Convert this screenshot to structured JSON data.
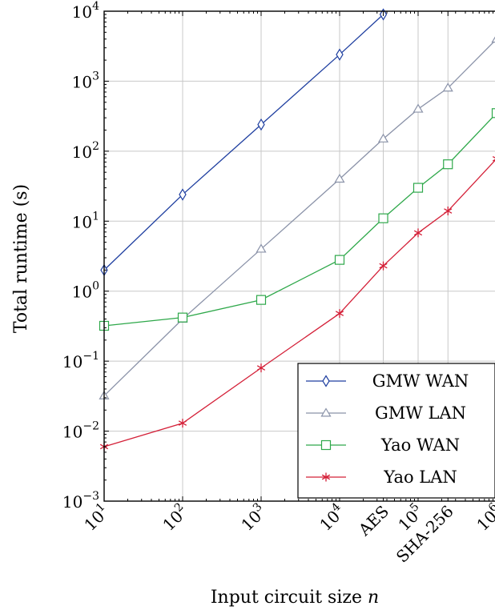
{
  "chart_data": {
    "type": "line",
    "xscale": "log",
    "yscale": "log",
    "xlim": [
      10,
      1000000
    ],
    "ylim": [
      0.001,
      10000
    ],
    "grid": true,
    "legend_position": "bottom-right",
    "ylabel": "Total runtime (s)",
    "xlabel": "Input circuit size n",
    "xlabel_text": "Input circuit size ",
    "xlabel_var": "n",
    "x_ticks": [
      {
        "value": 10,
        "base": "10",
        "exp": "1"
      },
      {
        "value": 100,
        "base": "10",
        "exp": "2"
      },
      {
        "value": 1000,
        "base": "10",
        "exp": "3"
      },
      {
        "value": 10000,
        "base": "10",
        "exp": "4"
      },
      {
        "value": 36000,
        "base": "AES",
        "exp": ""
      },
      {
        "value": 100000,
        "base": "10",
        "exp": "5"
      },
      {
        "value": 240000,
        "base": "SHA-256",
        "exp": ""
      },
      {
        "value": 1000000,
        "base": "10",
        "exp": "6"
      }
    ],
    "y_ticks": [
      {
        "value": 0.001,
        "base": "10",
        "exp": "−3"
      },
      {
        "value": 0.01,
        "base": "10",
        "exp": "−2"
      },
      {
        "value": 0.1,
        "base": "10",
        "exp": "−1"
      },
      {
        "value": 1,
        "base": "10",
        "exp": "0"
      },
      {
        "value": 10,
        "base": "10",
        "exp": "1"
      },
      {
        "value": 100,
        "base": "10",
        "exp": "2"
      },
      {
        "value": 1000,
        "base": "10",
        "exp": "3"
      },
      {
        "value": 10000,
        "base": "10",
        "exp": "4"
      }
    ],
    "series": [
      {
        "name": "GMW WAN",
        "color": "#1f3fa0",
        "marker": "diamond",
        "x": [
          10,
          100,
          1000,
          10000,
          36000
        ],
        "y": [
          2,
          24,
          240,
          2400,
          9000
        ]
      },
      {
        "name": "GMW LAN",
        "color": "#8a92a8",
        "marker": "triangle",
        "x": [
          10,
          100,
          1000,
          10000,
          36000,
          100000,
          240000,
          1000000
        ],
        "y": [
          0.032,
          0.4,
          4,
          40,
          150,
          400,
          800,
          4000
        ]
      },
      {
        "name": "Yao WAN",
        "color": "#2ea84a",
        "marker": "square",
        "x": [
          10,
          100,
          1000,
          10000,
          36000,
          100000,
          240000,
          1000000
        ],
        "y": [
          0.32,
          0.42,
          0.75,
          2.8,
          11,
          30,
          65,
          350
        ]
      },
      {
        "name": "Yao LAN",
        "color": "#d42038",
        "marker": "star",
        "x": [
          10,
          100,
          1000,
          10000,
          36000,
          100000,
          240000,
          1000000
        ],
        "y": [
          0.006,
          0.013,
          0.08,
          0.48,
          2.3,
          6.8,
          14,
          78
        ]
      }
    ]
  }
}
